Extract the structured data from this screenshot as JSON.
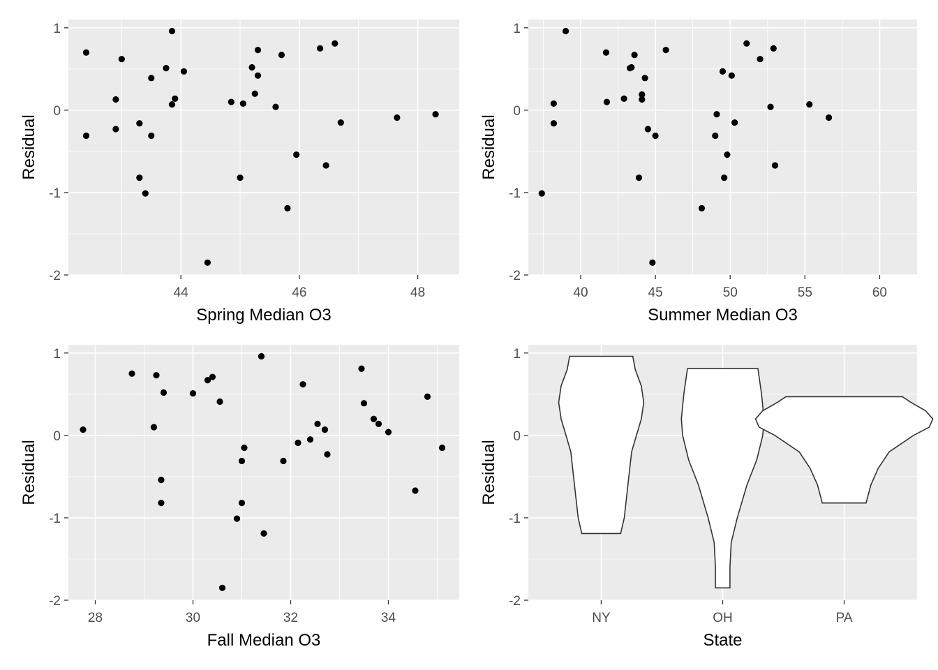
{
  "chart_data": [
    {
      "type": "scatter",
      "xlabel": "Spring Median O3",
      "ylabel": "Residual",
      "xlim": [
        42.1,
        48.7
      ],
      "ylim": [
        -2.0,
        1.1
      ],
      "xticks": [
        44,
        46,
        48
      ],
      "yticks": [
        -2,
        -1,
        0,
        1
      ],
      "grid": true,
      "points": [
        [
          42.4,
          0.7
        ],
        [
          42.4,
          -0.31
        ],
        [
          42.9,
          0.13
        ],
        [
          42.9,
          -0.23
        ],
        [
          43.0,
          0.62
        ],
        [
          43.3,
          -0.16
        ],
        [
          43.3,
          -0.82
        ],
        [
          43.4,
          -1.01
        ],
        [
          43.5,
          0.39
        ],
        [
          43.5,
          -0.31
        ],
        [
          43.75,
          0.51
        ],
        [
          43.85,
          0.96
        ],
        [
          43.85,
          0.07
        ],
        [
          43.9,
          0.14
        ],
        [
          44.05,
          0.47
        ],
        [
          44.45,
          -1.85
        ],
        [
          44.85,
          0.1
        ],
        [
          45.0,
          -0.82
        ],
        [
          45.05,
          0.08
        ],
        [
          45.2,
          0.52
        ],
        [
          45.25,
          0.2
        ],
        [
          45.3,
          0.73
        ],
        [
          45.3,
          0.42
        ],
        [
          45.6,
          0.04
        ],
        [
          45.7,
          0.67
        ],
        [
          45.8,
          -1.19
        ],
        [
          45.95,
          -0.54
        ],
        [
          46.35,
          0.75
        ],
        [
          46.45,
          -0.67
        ],
        [
          46.6,
          0.81
        ],
        [
          46.7,
          -0.15
        ],
        [
          47.65,
          -0.09
        ],
        [
          48.3,
          -0.05
        ]
      ]
    },
    {
      "type": "scatter",
      "xlabel": "Summer Median O3",
      "ylabel": "Residual",
      "xlim": [
        36.5,
        62.5
      ],
      "ylim": [
        -2.0,
        1.1
      ],
      "xticks": [
        40,
        45,
        50,
        55,
        60
      ],
      "yticks": [
        -2,
        -1,
        0,
        1
      ],
      "grid": true,
      "points": [
        [
          37.4,
          -1.01
        ],
        [
          38.2,
          0.08
        ],
        [
          38.2,
          -0.16
        ],
        [
          39.0,
          0.96
        ],
        [
          41.7,
          0.7
        ],
        [
          41.75,
          0.1
        ],
        [
          42.9,
          0.14
        ],
        [
          43.3,
          0.51
        ],
        [
          43.4,
          0.52
        ],
        [
          43.6,
          0.67
        ],
        [
          43.9,
          -0.82
        ],
        [
          44.1,
          0.19
        ],
        [
          44.1,
          0.13
        ],
        [
          44.3,
          0.39
        ],
        [
          44.5,
          -0.23
        ],
        [
          44.8,
          -1.85
        ],
        [
          45.0,
          -0.31
        ],
        [
          45.7,
          0.73
        ],
        [
          48.1,
          -1.19
        ],
        [
          49.0,
          -0.31
        ],
        [
          49.1,
          -0.05
        ],
        [
          49.5,
          0.47
        ],
        [
          49.6,
          -0.82
        ],
        [
          49.8,
          -0.54
        ],
        [
          50.1,
          0.42
        ],
        [
          50.3,
          -0.15
        ],
        [
          51.1,
          0.81
        ],
        [
          52.0,
          0.62
        ],
        [
          52.7,
          0.04
        ],
        [
          52.9,
          0.75
        ],
        [
          53.0,
          -0.67
        ],
        [
          55.3,
          0.07
        ],
        [
          56.6,
          -0.09
        ]
      ]
    },
    {
      "type": "scatter",
      "xlabel": "Fall Median O3",
      "ylabel": "Residual",
      "xlim": [
        27.45,
        35.45
      ],
      "ylim": [
        -2.0,
        1.1
      ],
      "xticks": [
        28,
        30,
        32,
        34
      ],
      "yticks": [
        -2,
        -1,
        0,
        1
      ],
      "grid": true,
      "points": [
        [
          27.75,
          0.07
        ],
        [
          28.75,
          0.75
        ],
        [
          29.2,
          0.1
        ],
        [
          29.25,
          0.73
        ],
        [
          29.35,
          -0.54
        ],
        [
          29.35,
          -0.82
        ],
        [
          29.4,
          0.52
        ],
        [
          30.0,
          0.51
        ],
        [
          30.3,
          0.67
        ],
        [
          30.4,
          0.71
        ],
        [
          30.55,
          0.41
        ],
        [
          30.6,
          -1.85
        ],
        [
          30.9,
          -1.01
        ],
        [
          31.0,
          -0.82
        ],
        [
          31.0,
          -0.31
        ],
        [
          31.05,
          -0.15
        ],
        [
          31.4,
          0.96
        ],
        [
          31.45,
          -1.19
        ],
        [
          31.85,
          -0.31
        ],
        [
          32.15,
          -0.09
        ],
        [
          32.25,
          0.62
        ],
        [
          32.4,
          -0.05
        ],
        [
          32.55,
          0.14
        ],
        [
          32.7,
          0.07
        ],
        [
          32.75,
          -0.23
        ],
        [
          33.45,
          0.81
        ],
        [
          33.5,
          0.39
        ],
        [
          33.7,
          0.2
        ],
        [
          33.8,
          0.14
        ],
        [
          34.0,
          0.04
        ],
        [
          34.55,
          -0.67
        ],
        [
          34.8,
          0.47
        ],
        [
          35.1,
          -0.15
        ]
      ]
    },
    {
      "type": "violin",
      "xlabel": "State",
      "ylabel": "Residual",
      "categories": [
        "NY",
        "OH",
        "PA"
      ],
      "ylim": [
        -2.0,
        1.1
      ],
      "yticks": [
        -2,
        -1,
        0,
        1
      ],
      "grid": true,
      "violins": [
        {
          "category": "NY",
          "outline": [
            [
              -1.19,
              0.16
            ],
            [
              -1.0,
              0.19
            ],
            [
              -0.6,
              0.22
            ],
            [
              -0.2,
              0.25
            ],
            [
              0.0,
              0.29
            ],
            [
              0.2,
              0.33
            ],
            [
              0.4,
              0.35
            ],
            [
              0.6,
              0.33
            ],
            [
              0.8,
              0.28
            ],
            [
              0.96,
              0.26
            ]
          ]
        },
        {
          "category": "OH",
          "outline": [
            [
              -1.85,
              0.06
            ],
            [
              -1.6,
              0.06
            ],
            [
              -1.3,
              0.07
            ],
            [
              -1.0,
              0.12
            ],
            [
              -0.6,
              0.2
            ],
            [
              -0.3,
              0.28
            ],
            [
              0.0,
              0.33
            ],
            [
              0.2,
              0.34
            ],
            [
              0.5,
              0.32
            ],
            [
              0.81,
              0.29
            ]
          ]
        },
        {
          "category": "PA",
          "outline": [
            [
              -0.82,
              0.18
            ],
            [
              -0.6,
              0.22
            ],
            [
              -0.4,
              0.28
            ],
            [
              -0.2,
              0.37
            ],
            [
              0.0,
              0.57
            ],
            [
              0.1,
              0.7
            ],
            [
              0.2,
              0.73
            ],
            [
              0.3,
              0.67
            ],
            [
              0.4,
              0.55
            ],
            [
              0.47,
              0.48
            ]
          ]
        }
      ]
    }
  ]
}
